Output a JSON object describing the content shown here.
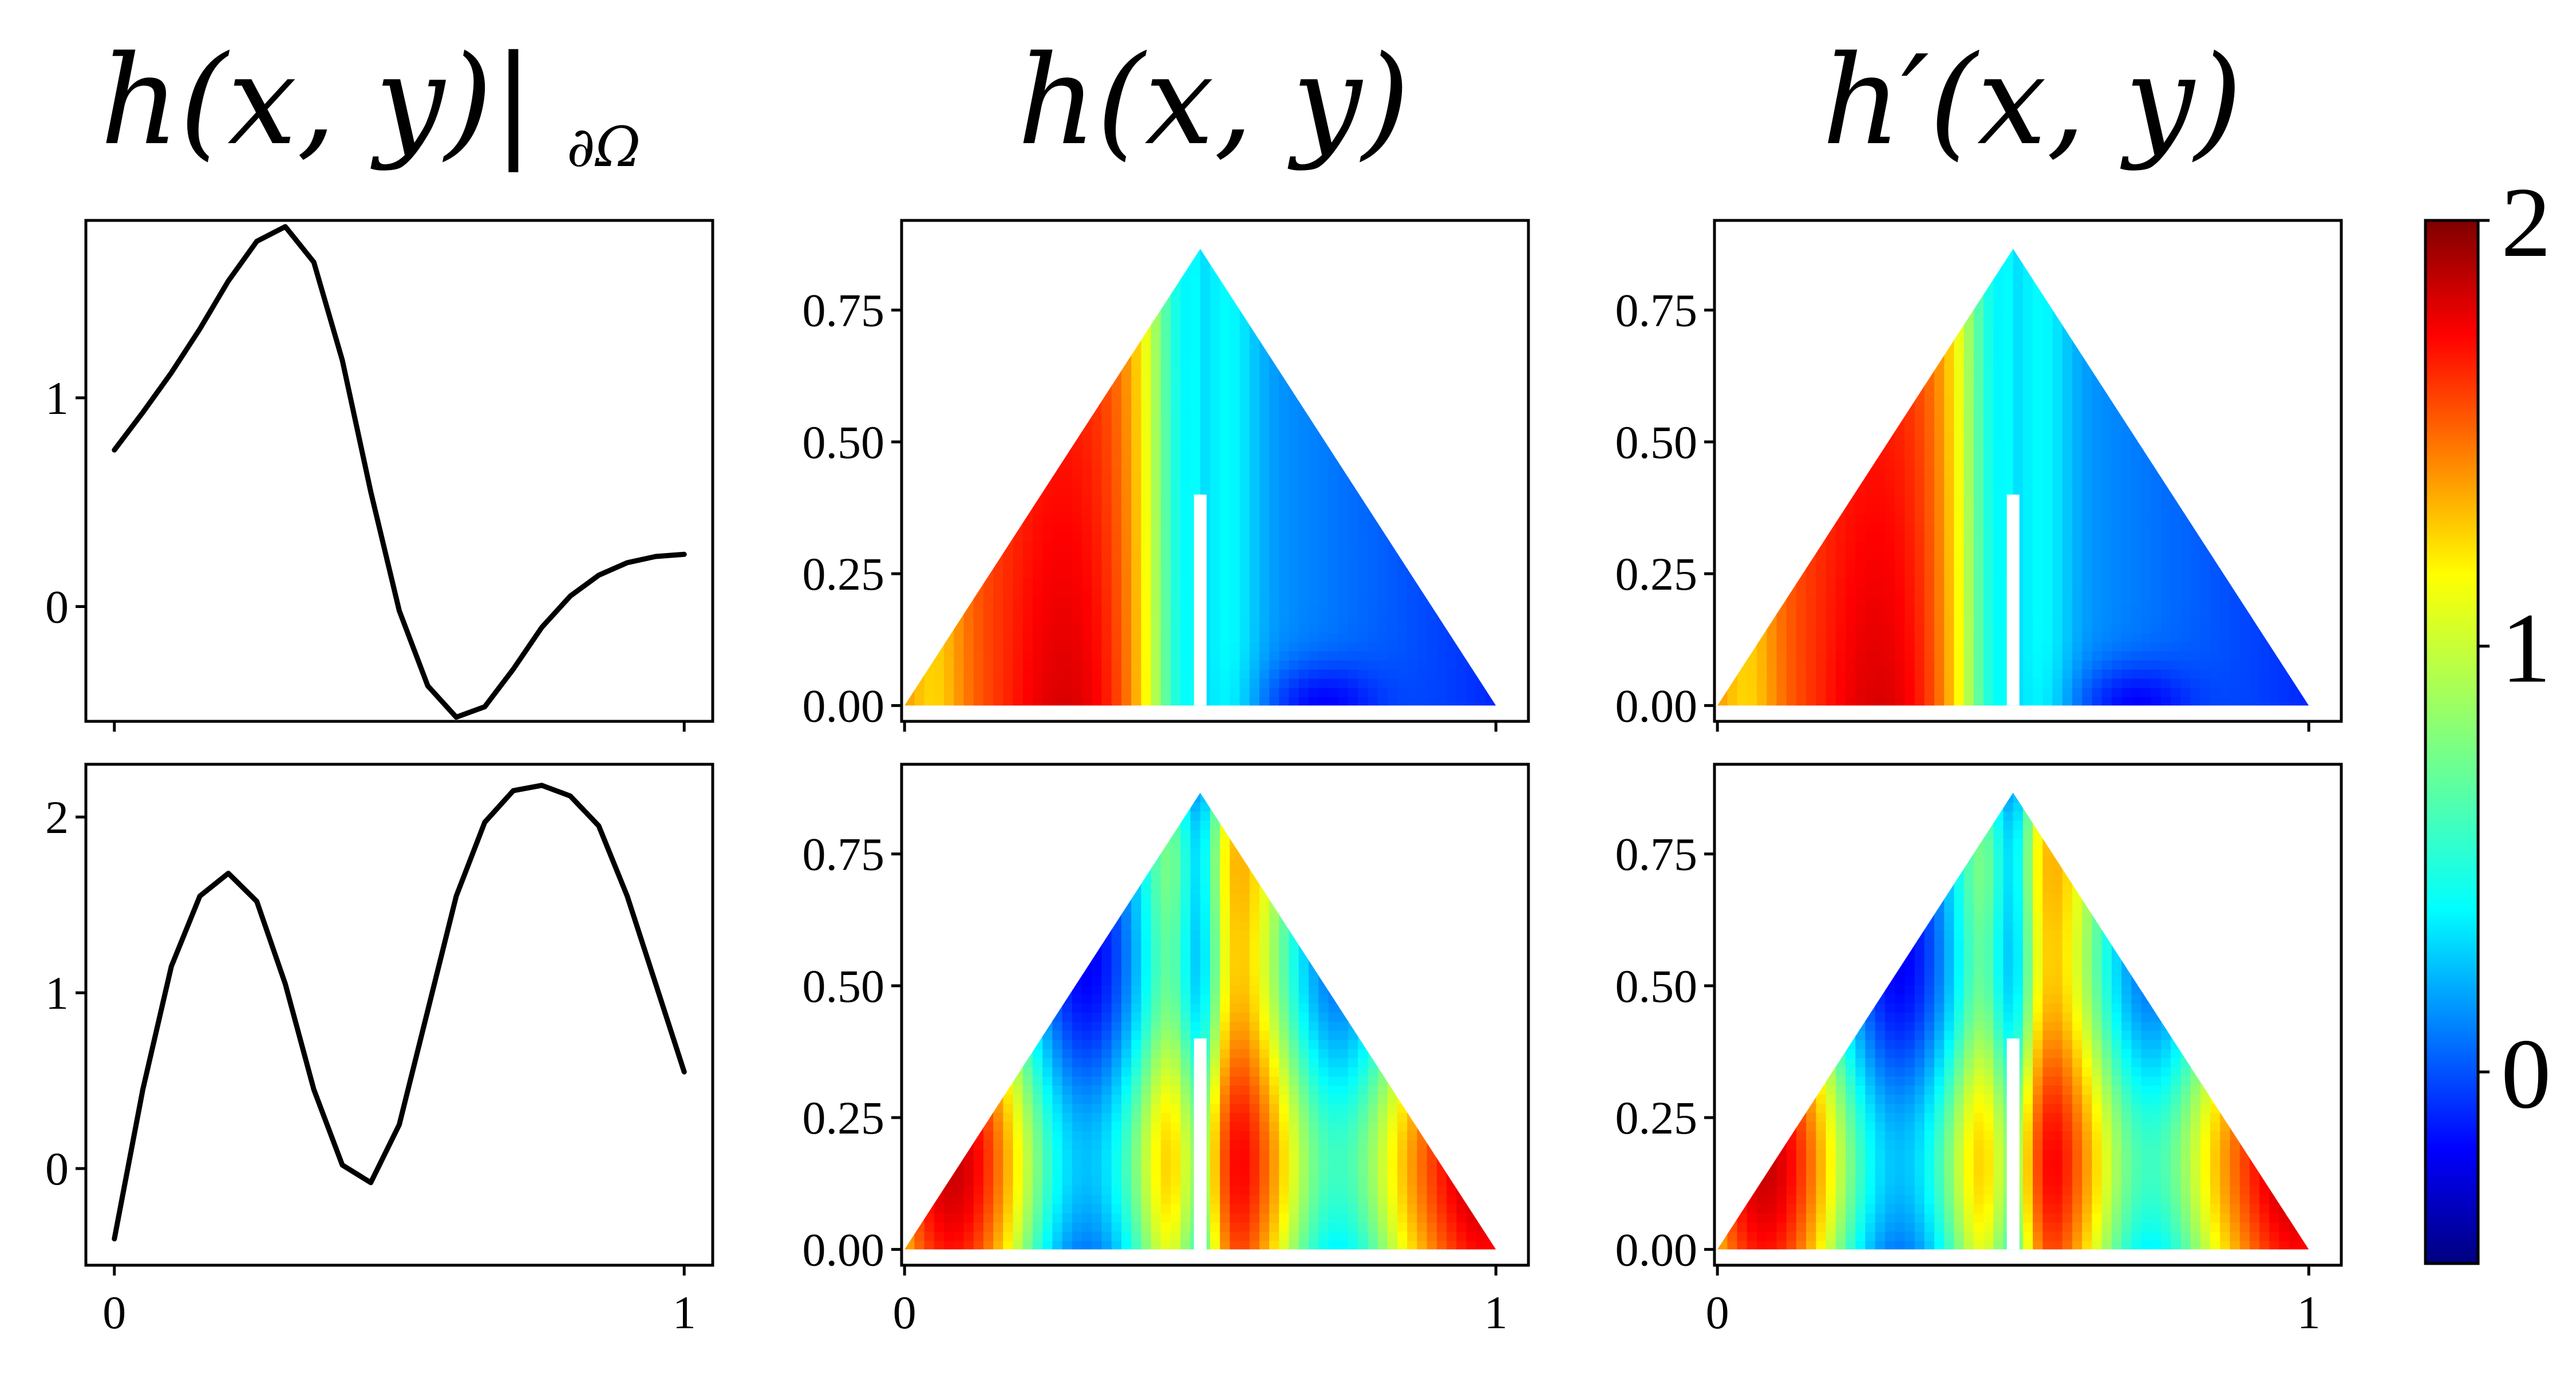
{
  "titles": {
    "col1_main": "h(x, y)|",
    "col1_sub": "∂Ω",
    "col2": "h(x, y)",
    "col3": "h′(x, y)"
  },
  "colorbar": {
    "colormap": "jet",
    "range": [
      -0.45,
      2.0
    ],
    "ticks": [
      0,
      1,
      2
    ],
    "tick_labels": [
      "0",
      "1",
      "2"
    ]
  },
  "chart_data": [
    {
      "type": "line",
      "panel": "top-left",
      "xlim": [
        -0.05,
        1.05
      ],
      "ylim": [
        -0.55,
        1.85
      ],
      "x_ticks": [
        0,
        1
      ],
      "x_tick_labels": [
        "0",
        "1"
      ],
      "y_ticks": [
        0,
        1
      ],
      "y_tick_labels": [
        "0",
        "1"
      ],
      "x": [
        0,
        0.05,
        0.1,
        0.15,
        0.2,
        0.25,
        0.3,
        0.35,
        0.4,
        0.45,
        0.5,
        0.55,
        0.6,
        0.65,
        0.7,
        0.75,
        0.8,
        0.85,
        0.9,
        0.95,
        1.0
      ],
      "y": [
        0.75,
        0.93,
        1.12,
        1.33,
        1.56,
        1.75,
        1.82,
        1.65,
        1.18,
        0.55,
        -0.02,
        -0.38,
        -0.53,
        -0.48,
        -0.3,
        -0.1,
        0.05,
        0.15,
        0.21,
        0.24,
        0.25
      ]
    },
    {
      "type": "line",
      "panel": "bottom-left",
      "xlim": [
        -0.05,
        1.05
      ],
      "ylim": [
        -0.55,
        2.3
      ],
      "x_ticks": [
        0,
        1
      ],
      "x_tick_labels": [
        "0",
        "1"
      ],
      "y_ticks": [
        0,
        1,
        2
      ],
      "y_tick_labels": [
        "0",
        "1",
        "2"
      ],
      "x": [
        0,
        0.05,
        0.1,
        0.15,
        0.2,
        0.25,
        0.3,
        0.35,
        0.4,
        0.45,
        0.5,
        0.55,
        0.6,
        0.65,
        0.7,
        0.75,
        0.8,
        0.85,
        0.9,
        0.95,
        1.0
      ],
      "y": [
        -0.4,
        0.45,
        1.15,
        1.55,
        1.68,
        1.52,
        1.05,
        0.45,
        0.02,
        -0.08,
        0.25,
        0.9,
        1.55,
        1.97,
        2.15,
        2.18,
        2.12,
        1.95,
        1.55,
        1.05,
        0.55
      ]
    },
    {
      "type": "heatmap",
      "panel": "top-middle",
      "xlim": [
        -0.005,
        1.055
      ],
      "ylim": [
        -0.03,
        0.92
      ],
      "x_ticks": [
        0,
        1
      ],
      "x_tick_labels": [
        "0",
        "1"
      ],
      "y_ticks": [
        0.0,
        0.25,
        0.5,
        0.75
      ],
      "y_tick_labels": [
        "0.00",
        "0.25",
        "0.50",
        "0.75"
      ],
      "domain": "equilateral triangle, vertices (0,0), (1,0), (0.5,0.866), with slit at x=0.5 from y=0 to y=0.4",
      "field": "mode_a"
    },
    {
      "type": "heatmap",
      "panel": "top-right",
      "xlim": [
        -0.005,
        1.055
      ],
      "ylim": [
        -0.03,
        0.92
      ],
      "x_ticks": [
        0,
        1
      ],
      "x_tick_labels": [
        "0",
        "1"
      ],
      "y_ticks": [
        0.0,
        0.25,
        0.5,
        0.75
      ],
      "y_tick_labels": [
        "0.00",
        "0.25",
        "0.50",
        "0.75"
      ],
      "domain": "equilateral triangle, vertices (0,0), (1,0), (0.5,0.866), with slit at x=0.5 from y=0 to y=0.4",
      "field": "mode_a"
    },
    {
      "type": "heatmap",
      "panel": "bottom-middle",
      "xlim": [
        -0.005,
        1.055
      ],
      "ylim": [
        -0.03,
        0.92
      ],
      "x_ticks": [
        0,
        1
      ],
      "x_tick_labels": [
        "0",
        "1"
      ],
      "y_ticks": [
        0.0,
        0.25,
        0.5,
        0.75
      ],
      "y_tick_labels": [
        "0.00",
        "0.25",
        "0.50",
        "0.75"
      ],
      "domain": "equilateral triangle, vertices (0,0), (1,0), (0.5,0.866), with slit at x=0.5 from y=0 to y=0.4",
      "field": "mode_b"
    },
    {
      "type": "heatmap",
      "panel": "bottom-right",
      "xlim": [
        -0.005,
        1.055
      ],
      "ylim": [
        -0.03,
        0.92
      ],
      "x_ticks": [
        0,
        1
      ],
      "x_tick_labels": [
        "0",
        "1"
      ],
      "y_ticks": [
        0.0,
        0.25,
        0.5,
        0.75
      ],
      "y_tick_labels": [
        "0.00",
        "0.25",
        "0.50",
        "0.75"
      ],
      "domain": "equilateral triangle, vertices (0,0), (1,0), (0.5,0.866), with slit at x=0.5 from y=0 to y=0.4",
      "field": "mode_b"
    }
  ]
}
